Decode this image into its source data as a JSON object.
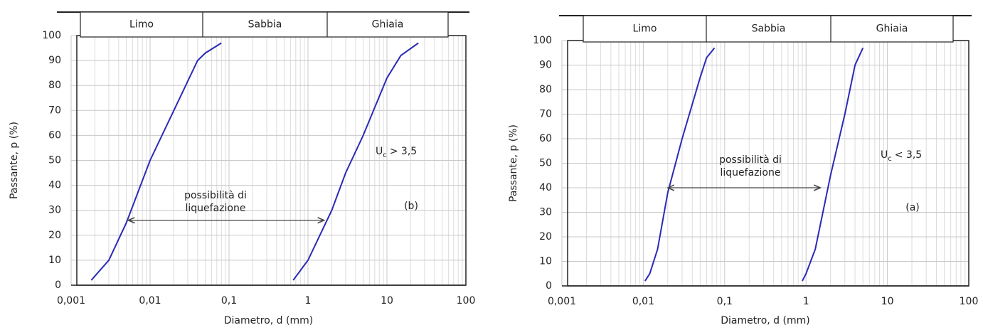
{
  "chart_data": [
    {
      "type": "line",
      "x_label": "Diametro, d (mm)",
      "y_label": "Passante, p (%)",
      "log_x": true,
      "grid": true,
      "bands": [
        "Limo",
        "Sabbia",
        "Ghiaia"
      ],
      "xlim": [
        0.001,
        100
      ],
      "ylim": [
        0,
        100
      ],
      "xticks": [
        {
          "value": 0.001,
          "label": "0,001"
        },
        {
          "value": 0.01,
          "label": "0,01"
        },
        {
          "value": 0.1,
          "label": "0,1"
        },
        1,
        10,
        100
      ],
      "yticks": [
        0,
        10,
        20,
        30,
        40,
        50,
        60,
        70,
        80,
        90,
        100
      ],
      "series": [
        {
          "color": "#2a2ab8",
          "x": [
            0.0018,
            0.003,
            0.005,
            0.01,
            0.02,
            0.04,
            0.05,
            0.08
          ],
          "values": [
            2,
            10,
            25,
            50,
            70,
            90,
            93,
            97
          ]
        },
        {
          "color": "#2a2ab8",
          "x": [
            0.65,
            1,
            2,
            3,
            5,
            10,
            15,
            25
          ],
          "values": [
            2,
            10,
            30,
            45,
            60,
            83,
            92,
            97
          ]
        }
      ],
      "arrow": {
        "text": "possibilità di liquefazione",
        "y": 26,
        "x": [
          0.0053,
          1.6
        ]
      },
      "coefficient": {
        "symbol": "U",
        "subscript": "c",
        "text": "> 3,5"
      },
      "panel_label": "(b)"
    },
    {
      "type": "line",
      "x_label": "Diametro, d (mm)",
      "y_label": "Passante, p (%)",
      "log_x": true,
      "grid": true,
      "bands": [
        "Limo",
        "Sabbia",
        "Ghiaia"
      ],
      "xlim": [
        0.001,
        100
      ],
      "ylim": [
        0,
        100
      ],
      "xticks": [
        {
          "value": 0.001,
          "label": "0,001"
        },
        {
          "value": 0.01,
          "label": "0,01"
        },
        {
          "value": 0.1,
          "label": "0,1"
        },
        1,
        10,
        100
      ],
      "yticks": [
        0,
        10,
        20,
        30,
        40,
        50,
        60,
        70,
        80,
        90,
        100
      ],
      "series": [
        {
          "color": "#2a2ab8",
          "x": [
            0.0105,
            0.012,
            0.015,
            0.02,
            0.03,
            0.05,
            0.06,
            0.075
          ],
          "values": [
            2,
            5,
            15,
            38,
            60,
            85,
            93,
            97
          ]
        },
        {
          "color": "#2a2ab8",
          "x": [
            0.9,
            1,
            1.3,
            2,
            3,
            4,
            5
          ],
          "values": [
            2,
            5,
            15,
            45,
            70,
            90,
            97
          ]
        }
      ],
      "arrow": {
        "text": "possibilità di liquefazione",
        "y": 40,
        "x": [
          0.02,
          1.5
        ]
      },
      "coefficient": {
        "symbol": "U",
        "subscript": "c",
        "text": "< 3,5"
      },
      "panel_label": "(a)"
    }
  ]
}
